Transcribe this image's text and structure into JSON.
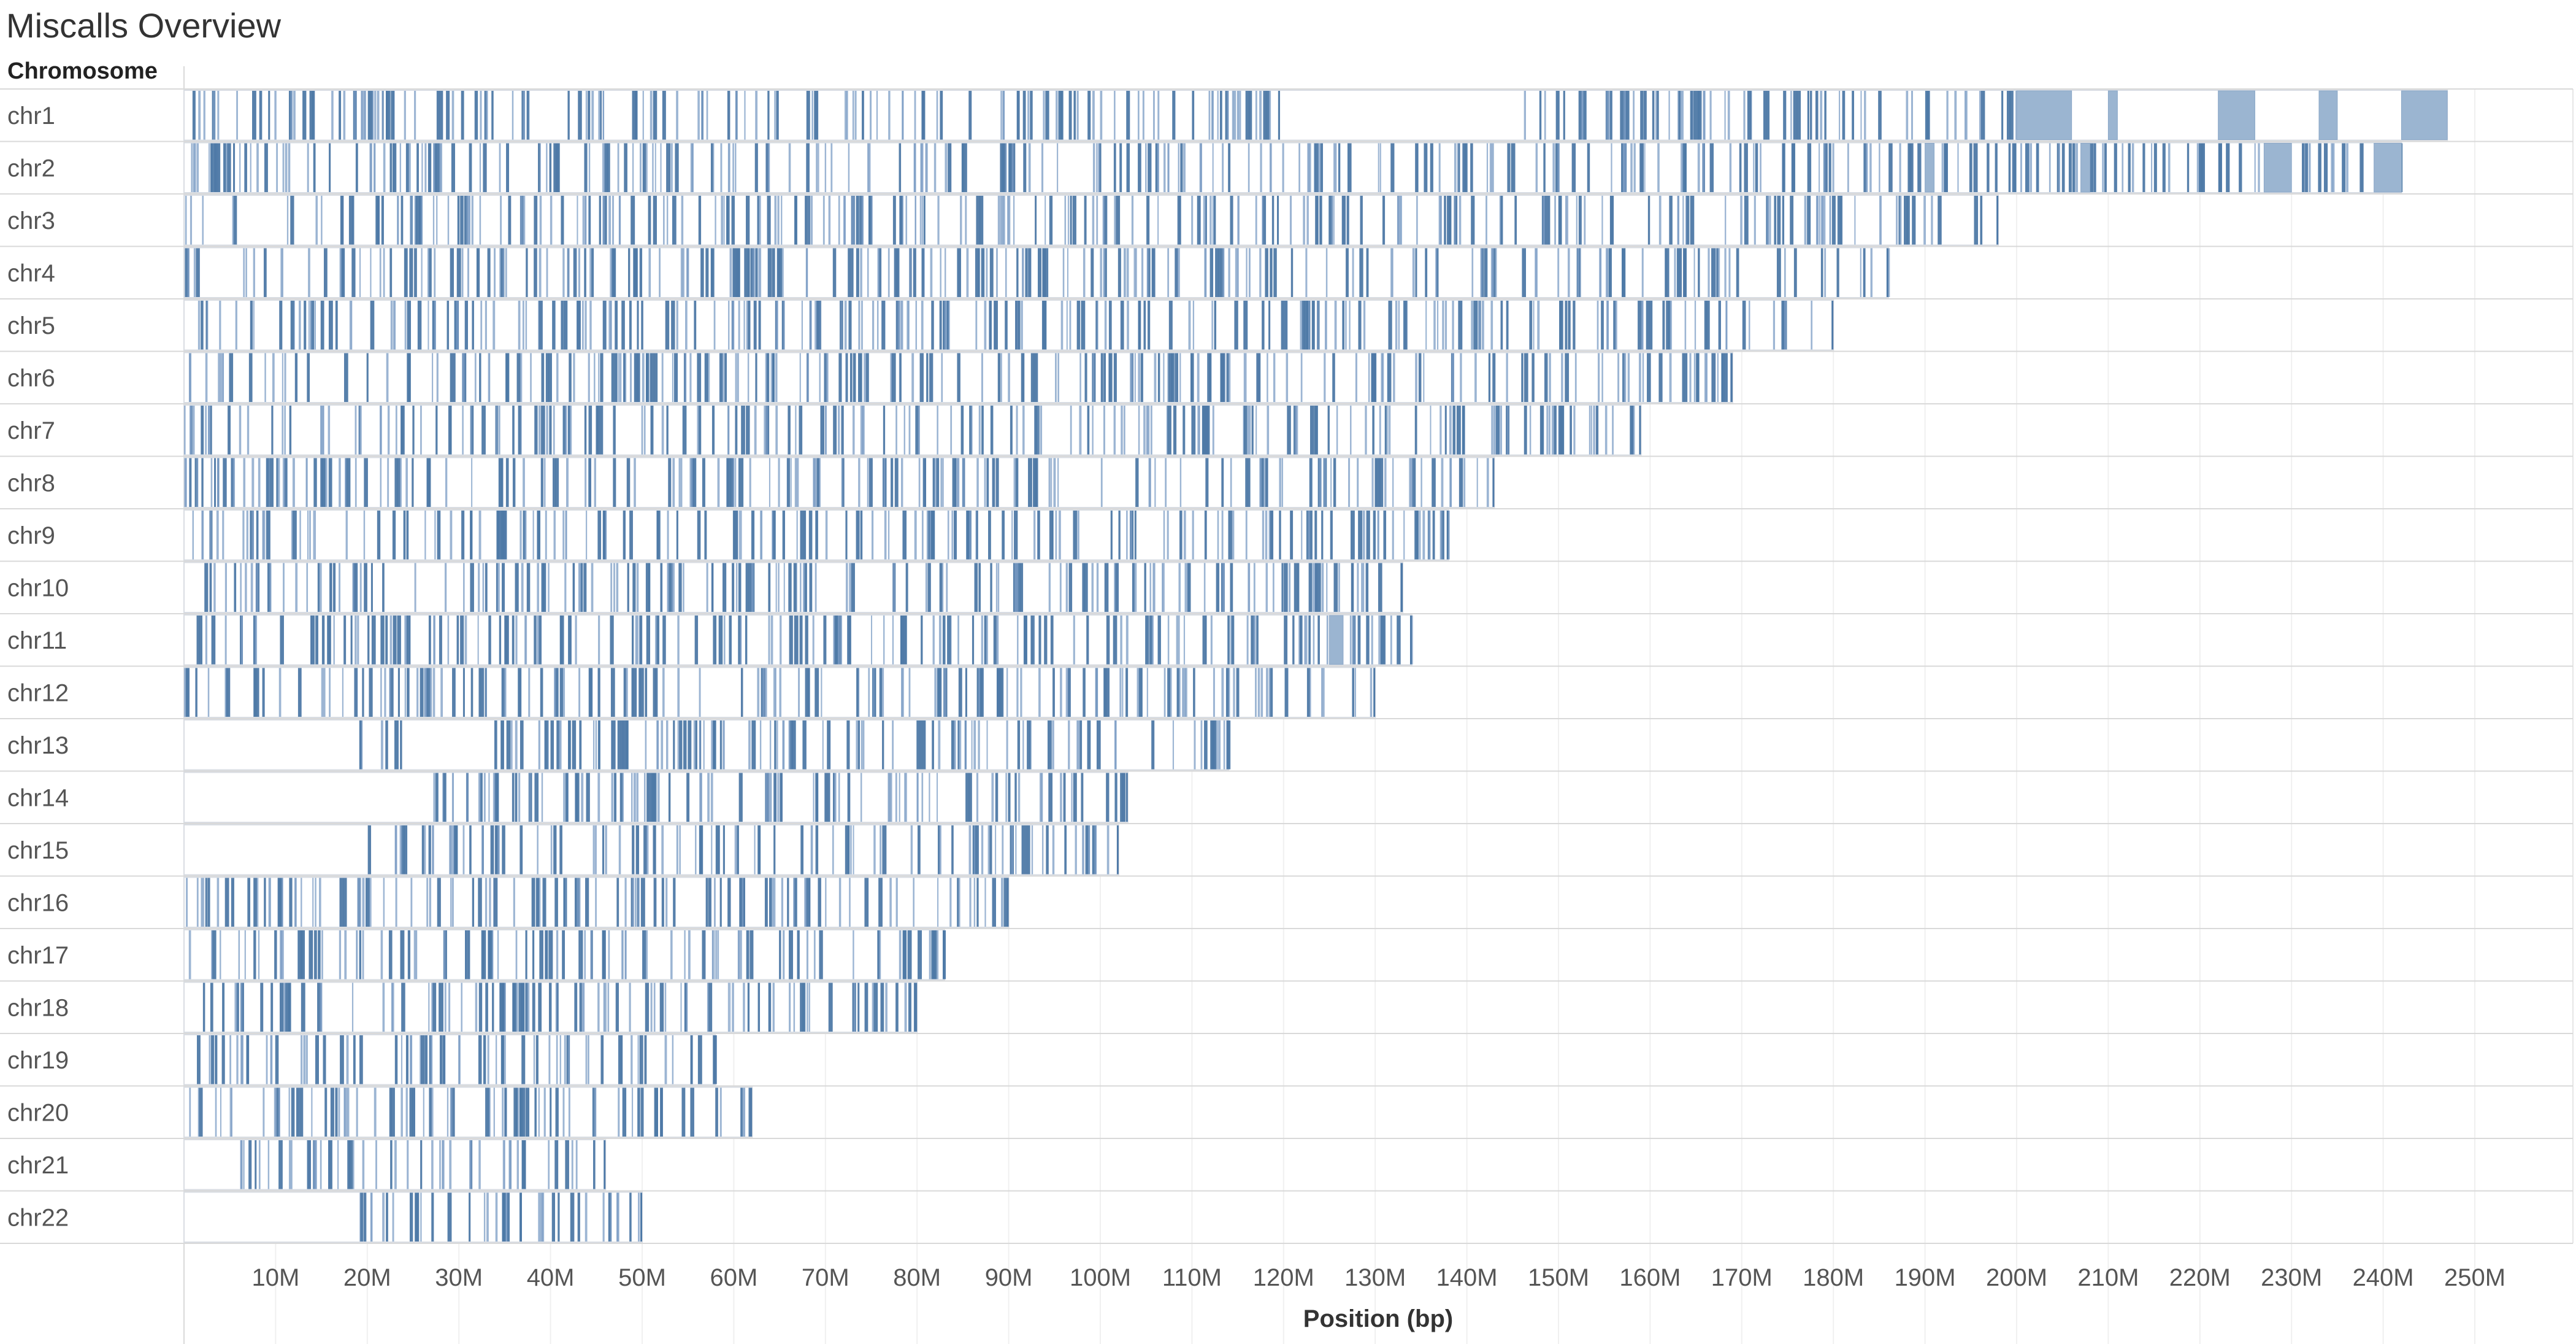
{
  "title": "Miscalls Overview",
  "chart_data": {
    "type": "strip",
    "title": "Miscalls Overview",
    "row_header": "Chromosome",
    "xlabel": "Position (bp)",
    "xlim": [
      0,
      260000000
    ],
    "x_ticks": [
      {
        "value": 10000000,
        "label": "10M"
      },
      {
        "value": 20000000,
        "label": "20M"
      },
      {
        "value": 30000000,
        "label": "30M"
      },
      {
        "value": 40000000,
        "label": "40M"
      },
      {
        "value": 50000000,
        "label": "50M"
      },
      {
        "value": 60000000,
        "label": "60M"
      },
      {
        "value": 70000000,
        "label": "70M"
      },
      {
        "value": 80000000,
        "label": "80M"
      },
      {
        "value": 90000000,
        "label": "90M"
      },
      {
        "value": 100000000,
        "label": "100M"
      },
      {
        "value": 110000000,
        "label": "110M"
      },
      {
        "value": 120000000,
        "label": "120M"
      },
      {
        "value": 130000000,
        "label": "130M"
      },
      {
        "value": 140000000,
        "label": "140M"
      },
      {
        "value": 150000000,
        "label": "150M"
      },
      {
        "value": 160000000,
        "label": "160M"
      },
      {
        "value": 170000000,
        "label": "170M"
      },
      {
        "value": 180000000,
        "label": "180M"
      },
      {
        "value": 190000000,
        "label": "190M"
      },
      {
        "value": 200000000,
        "label": "200M"
      },
      {
        "value": 210000000,
        "label": "210M"
      },
      {
        "value": 220000000,
        "label": "220M"
      },
      {
        "value": 230000000,
        "label": "230M"
      },
      {
        "value": 240000000,
        "label": "240M"
      },
      {
        "value": 250000000,
        "label": "250M"
      }
    ],
    "grid": true,
    "color": "#4e79a7",
    "block_color": "#9bb5d1",
    "rows": [
      {
        "name": "chr1",
        "last_miscall": 247000000,
        "blocks": [
          [
            200000000,
            206000000
          ],
          [
            210000000,
            211000000
          ],
          [
            222000000,
            226000000
          ],
          [
            233000000,
            235000000
          ],
          [
            242000000,
            247000000
          ]
        ],
        "dense_regions": [
          [
            0,
            120000000
          ],
          [
            145000000,
            200000000
          ]
        ]
      },
      {
        "name": "chr2",
        "last_miscall": 242000000,
        "blocks": [
          [
            190000000,
            191000000
          ],
          [
            207000000,
            208000000
          ],
          [
            227000000,
            230000000
          ],
          [
            239000000,
            242000000
          ]
        ],
        "dense_regions": [
          [
            0,
            130000000
          ],
          [
            130000000,
            242000000
          ]
        ]
      },
      {
        "name": "chr3",
        "last_miscall": 198000000,
        "blocks": [],
        "dense_regions": [
          [
            0,
            198000000
          ]
        ]
      },
      {
        "name": "chr4",
        "last_miscall": 186000000,
        "blocks": [],
        "dense_regions": [
          [
            0,
            186000000
          ]
        ]
      },
      {
        "name": "chr5",
        "last_miscall": 180000000,
        "blocks": [],
        "dense_regions": [
          [
            0,
            180000000
          ]
        ]
      },
      {
        "name": "chr6",
        "last_miscall": 169000000,
        "blocks": [],
        "dense_regions": [
          [
            0,
            169000000
          ]
        ]
      },
      {
        "name": "chr7",
        "last_miscall": 159000000,
        "blocks": [],
        "dense_regions": [
          [
            0,
            159000000
          ]
        ]
      },
      {
        "name": "chr8",
        "last_miscall": 143000000,
        "blocks": [],
        "dense_regions": [
          [
            0,
            143000000
          ]
        ]
      },
      {
        "name": "chr9",
        "last_miscall": 138000000,
        "blocks": [],
        "dense_regions": [
          [
            0,
            138000000
          ]
        ]
      },
      {
        "name": "chr10",
        "last_miscall": 133000000,
        "blocks": [],
        "dense_regions": [
          [
            0,
            133000000
          ]
        ]
      },
      {
        "name": "chr11",
        "last_miscall": 134000000,
        "blocks": [
          [
            125000000,
            126500000
          ]
        ],
        "dense_regions": [
          [
            0,
            134000000
          ]
        ]
      },
      {
        "name": "chr12",
        "last_miscall": 130000000,
        "blocks": [],
        "dense_regions": [
          [
            0,
            130000000
          ]
        ]
      },
      {
        "name": "chr13",
        "last_miscall": 114000000,
        "blocks": [],
        "dense_regions": [
          [
            19000000,
            114000000
          ]
        ]
      },
      {
        "name": "chr14",
        "last_miscall": 103000000,
        "blocks": [],
        "dense_regions": [
          [
            24000000,
            103000000
          ]
        ]
      },
      {
        "name": "chr15",
        "last_miscall": 102000000,
        "blocks": [],
        "dense_regions": [
          [
            20000000,
            102000000
          ]
        ]
      },
      {
        "name": "chr16",
        "last_miscall": 90000000,
        "blocks": [],
        "dense_regions": [
          [
            0,
            90000000
          ]
        ]
      },
      {
        "name": "chr17",
        "last_miscall": 83000000,
        "blocks": [],
        "dense_regions": [
          [
            0,
            83000000
          ]
        ]
      },
      {
        "name": "chr18",
        "last_miscall": 80000000,
        "blocks": [],
        "dense_regions": [
          [
            0,
            80000000
          ]
        ]
      },
      {
        "name": "chr19",
        "last_miscall": 58000000,
        "blocks": [],
        "dense_regions": [
          [
            0,
            58000000
          ]
        ]
      },
      {
        "name": "chr20",
        "last_miscall": 62000000,
        "blocks": [],
        "dense_regions": [
          [
            0,
            62000000
          ]
        ]
      },
      {
        "name": "chr21",
        "last_miscall": 46000000,
        "blocks": [],
        "dense_regions": [
          [
            6000000,
            46000000
          ]
        ]
      },
      {
        "name": "chr22",
        "last_miscall": 50000000,
        "blocks": [],
        "dense_regions": [
          [
            18000000,
            50000000
          ]
        ]
      }
    ]
  }
}
